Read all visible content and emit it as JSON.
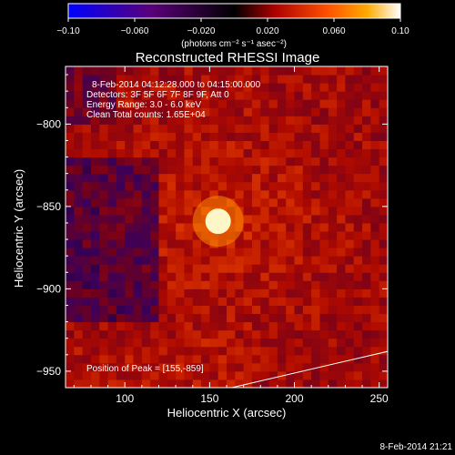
{
  "chart_data": {
    "type": "heatmap",
    "title": "Reconstructed RHESSI Image",
    "xlabel": "Heliocentric X (arcsec)",
    "ylabel": "Heliocentric Y (arcsec)",
    "xlim": [
      65,
      255
    ],
    "ylim": [
      -960,
      -765
    ],
    "x_ticks": [
      "100",
      "150",
      "200",
      "250"
    ],
    "x_tick_values": [
      100,
      150,
      200,
      250
    ],
    "y_ticks": [
      "-800",
      "-850",
      "-900",
      "-950"
    ],
    "y_tick_values": [
      -800,
      -850,
      -900,
      -950
    ],
    "colorbar": {
      "range": [
        -0.1,
        0.1
      ],
      "tick_labels": [
        "-0.10",
        "-0.060",
        "-0.020",
        "0.020",
        "0.060",
        "0.10"
      ],
      "tick_values": [
        -0.1,
        -0.06,
        -0.02,
        0.02,
        0.06,
        0.1
      ],
      "unit_label": "(photons cm⁻² s⁻¹ asec⁻²)",
      "colors": [
        "#0000ff",
        "#5a0078",
        "#000000",
        "#aa0000",
        "#ff5000",
        "#ffaa00",
        "#ffffff"
      ]
    },
    "annotations": [
      "8-Feb-2014 04:12:28.000 to 04:15:00.000",
      "Detectors: 3F 5F 6F 7F 8F 9F, Att 0",
      "Energy Range: 3.0 - 6.0 keV",
      "Clean     Total counts: 1.65E+04"
    ],
    "peak_label": "Position of Peak = [155,-859]",
    "peak": {
      "x": 155,
      "y": -859
    },
    "limb_curve": [
      [
        163,
        -960
      ],
      [
        255,
        -938
      ]
    ]
  },
  "footer": {
    "timestamp": "8-Feb-2014 21:21"
  }
}
